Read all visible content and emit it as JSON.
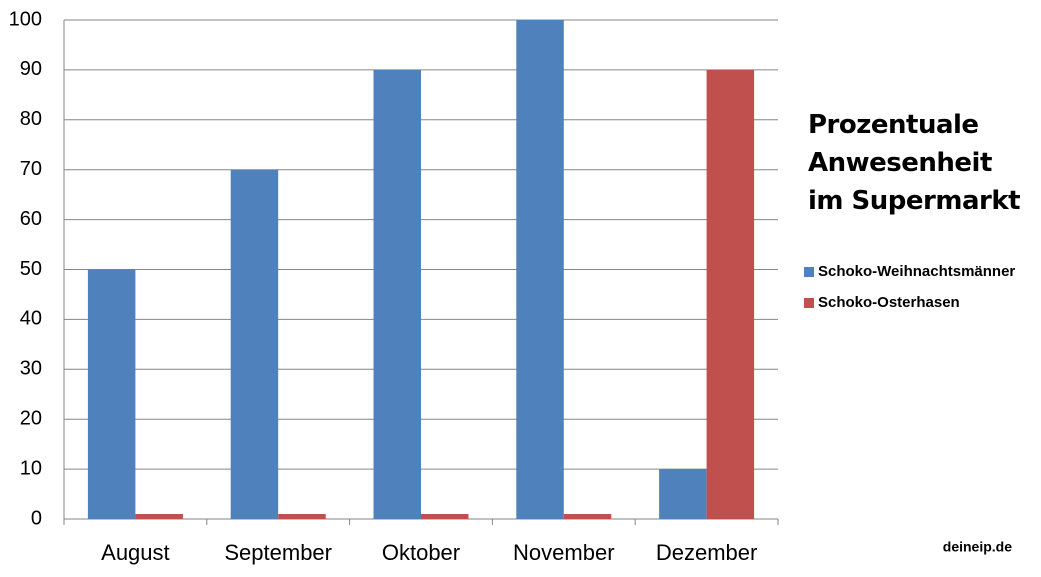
{
  "chart_data": {
    "type": "bar",
    "title": "Prozentuale\nAnwesenheit\nim Supermarkt",
    "categories": [
      "August",
      "September",
      "Oktober",
      "November",
      "Dezember"
    ],
    "series": [
      {
        "name": "Schoko-Weihnachtsmänner",
        "color": "#4f81bd",
        "values": [
          50,
          70,
          90,
          100,
          10
        ]
      },
      {
        "name": "Schoko-Osterhasen",
        "color": "#c0504d",
        "values": [
          1,
          1,
          1,
          1,
          90
        ]
      }
    ],
    "ylim": [
      0,
      100
    ],
    "yticks": [
      0,
      10,
      20,
      30,
      40,
      50,
      60,
      70,
      80,
      90,
      100
    ],
    "grid": true,
    "legend": "right",
    "watermark": "deineip.de"
  }
}
